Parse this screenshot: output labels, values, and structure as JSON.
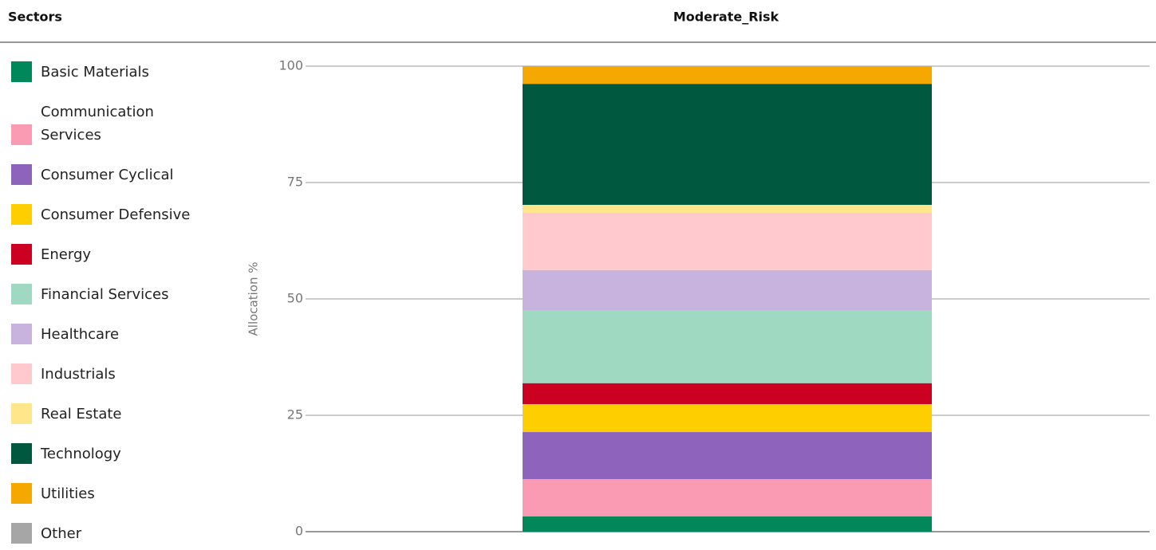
{
  "chart_data": {
    "type": "stacked_bar",
    "legend_title": "Sectors",
    "categories": [
      "Moderate_Risk"
    ],
    "ylabel": "Allocation %",
    "ylim": [
      0,
      100
    ],
    "yticks": [
      0,
      25,
      50,
      75,
      100
    ],
    "grid": true,
    "legend": "left",
    "series": [
      {
        "name": "Basic Materials",
        "color": "#00875a",
        "values": [
          3.3
        ]
      },
      {
        "name": "Communication Services",
        "color": "#fb9bb3",
        "values": [
          8.0
        ]
      },
      {
        "name": "Consumer Cyclical",
        "color": "#8e63bb",
        "values": [
          10.1
        ]
      },
      {
        "name": "Consumer Defensive",
        "color": "#ffce00",
        "values": [
          6.0
        ]
      },
      {
        "name": "Energy",
        "color": "#cc0020",
        "values": [
          4.5
        ]
      },
      {
        "name": "Financial Services",
        "color": "#9fd9c2",
        "values": [
          15.6
        ]
      },
      {
        "name": "Healthcare",
        "color": "#c7b3dd",
        "values": [
          8.7
        ]
      },
      {
        "name": "Industrials",
        "color": "#ffc9ce",
        "values": [
          12.3
        ]
      },
      {
        "name": "Real Estate",
        "color": "#ffe68a",
        "values": [
          1.7
        ]
      },
      {
        "name": "Technology",
        "color": "#00583e",
        "values": [
          26.0
        ]
      },
      {
        "name": "Utilities",
        "color": "#f5a800",
        "values": [
          3.8
        ]
      },
      {
        "name": "Other",
        "color": "#a6a6a6",
        "values": [
          0
        ]
      }
    ]
  }
}
